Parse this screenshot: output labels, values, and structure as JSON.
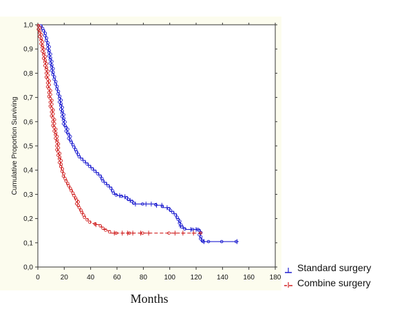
{
  "chart_data": {
    "type": "line",
    "title": "",
    "xlabel": "Months",
    "ylabel": "Cumulative Proportion Surviving",
    "xlim": [
      0,
      180
    ],
    "ylim": [
      0,
      1
    ],
    "x_ticks": [
      "0",
      "20",
      "40",
      "60",
      "80",
      "100",
      "120",
      "140",
      "160",
      "180"
    ],
    "y_ticks": [
      "0,0",
      "0,1",
      "0,2",
      "0,3",
      "0,4",
      "0,5",
      "0,6",
      "0,7",
      "0,8",
      "0,9",
      "1,0"
    ],
    "grid": false,
    "legend_position": "bottom-right",
    "series": [
      {
        "name": "Standard surgery",
        "color": "#1f1fd0",
        "style": "solid",
        "x": [
          0,
          3,
          5,
          6,
          7,
          8,
          9,
          10,
          11,
          12,
          13,
          14,
          15,
          16,
          17,
          18,
          19,
          20,
          22,
          24,
          26,
          28,
          30,
          32,
          34,
          36,
          38,
          40,
          42,
          44,
          46,
          48,
          50,
          52,
          54,
          56,
          58,
          60,
          64,
          68,
          72,
          80,
          90,
          95,
          100,
          103,
          105,
          107,
          108,
          110,
          112,
          118,
          122,
          123,
          124,
          126,
          130,
          140,
          151
        ],
        "y": [
          1.0,
          0.98,
          0.96,
          0.94,
          0.92,
          0.89,
          0.86,
          0.83,
          0.8,
          0.78,
          0.76,
          0.74,
          0.72,
          0.7,
          0.67,
          0.64,
          0.61,
          0.58,
          0.55,
          0.52,
          0.5,
          0.48,
          0.46,
          0.45,
          0.44,
          0.43,
          0.42,
          0.41,
          0.4,
          0.39,
          0.38,
          0.36,
          0.35,
          0.34,
          0.33,
          0.31,
          0.3,
          0.295,
          0.29,
          0.275,
          0.26,
          0.26,
          0.255,
          0.245,
          0.23,
          0.22,
          0.2,
          0.185,
          0.17,
          0.16,
          0.155,
          0.155,
          0.155,
          0.12,
          0.105,
          0.105,
          0.105,
          0.105,
          0.105
        ],
        "censored_x": [
          62,
          66,
          70,
          74,
          82,
          86,
          90,
          94,
          98,
          108,
          116,
          120,
          126,
          151
        ]
      },
      {
        "name": "Combine surgery",
        "color": "#d01f1f",
        "style": "dashed",
        "x": [
          0,
          1,
          2,
          3,
          4,
          5,
          6,
          7,
          8,
          9,
          10,
          11,
          12,
          13,
          14,
          15,
          16,
          17,
          18,
          19,
          20,
          22,
          24,
          26,
          28,
          30,
          32,
          34,
          36,
          38,
          40,
          44,
          48,
          50,
          52,
          55,
          60,
          70,
          80,
          100,
          124
        ],
        "y": [
          1.0,
          0.97,
          0.94,
          0.91,
          0.88,
          0.85,
          0.82,
          0.78,
          0.74,
          0.7,
          0.66,
          0.62,
          0.58,
          0.55,
          0.52,
          0.48,
          0.45,
          0.42,
          0.4,
          0.38,
          0.36,
          0.34,
          0.32,
          0.3,
          0.28,
          0.25,
          0.23,
          0.21,
          0.2,
          0.19,
          0.18,
          0.175,
          0.165,
          0.155,
          0.15,
          0.14,
          0.14,
          0.14,
          0.14,
          0.14,
          0.14
        ],
        "censored_x": [
          44,
          58,
          64,
          68,
          72,
          78,
          84,
          104,
          110,
          118
        ]
      }
    ]
  },
  "legend": {
    "items": [
      {
        "label": "Standard surgery",
        "color": "#1f1fd0",
        "style": "solid"
      },
      {
        "label": "Combine surgery",
        "color": "#d01f1f",
        "style": "dashed"
      }
    ]
  }
}
